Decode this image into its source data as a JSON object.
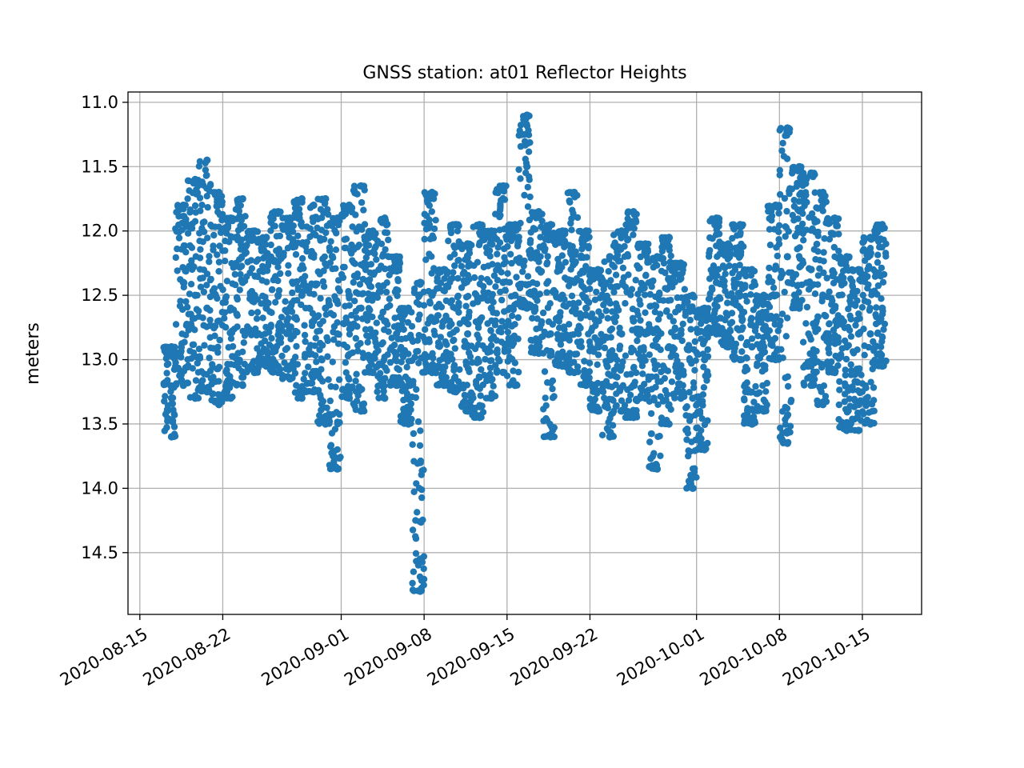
{
  "chart_data": {
    "type": "scatter",
    "title": "GNSS station: at01 Reflector Heights",
    "xlabel": "",
    "ylabel": "meters",
    "x_type": "date",
    "xlim": [
      "2020-08-14",
      "2020-10-20"
    ],
    "ylim": [
      14.98,
      10.92
    ],
    "y_inverted": true,
    "grid": true,
    "marker": "filled-circle",
    "color": "#1f77b4",
    "x_ticks": [
      "2020-08-15",
      "2020-08-22",
      "2020-09-01",
      "2020-09-08",
      "2020-09-15",
      "2020-09-22",
      "2020-10-01",
      "2020-10-08",
      "2020-10-15"
    ],
    "y_ticks": [
      11.0,
      11.5,
      12.0,
      12.5,
      13.0,
      13.5,
      14.0,
      14.5
    ],
    "series": [
      {
        "points": [
          [
            "2020-08-17",
            13.3
          ],
          [
            "2020-08-17",
            13.6
          ],
          [
            "2020-08-17",
            12.9
          ],
          [
            "2020-08-18",
            11.8
          ],
          [
            "2020-08-18",
            13.2
          ],
          [
            "2020-08-18",
            12.4
          ],
          [
            "2020-08-19",
            11.6
          ],
          [
            "2020-08-19",
            13.3
          ],
          [
            "2020-08-19",
            12.5
          ],
          [
            "2020-08-20",
            11.45
          ],
          [
            "2020-08-20",
            13.25
          ],
          [
            "2020-08-20",
            12.6
          ],
          [
            "2020-08-21",
            11.7
          ],
          [
            "2020-08-21",
            13.35
          ],
          [
            "2020-08-21",
            12.7
          ],
          [
            "2020-08-22",
            11.9
          ],
          [
            "2020-08-22",
            13.3
          ],
          [
            "2020-08-22",
            12.6
          ],
          [
            "2020-08-23",
            11.75
          ],
          [
            "2020-08-23",
            13.2
          ],
          [
            "2020-08-23",
            12.4
          ],
          [
            "2020-08-24",
            12.0
          ],
          [
            "2020-08-24",
            13.1
          ],
          [
            "2020-08-24",
            12.5
          ],
          [
            "2020-08-25",
            12.05
          ],
          [
            "2020-08-25",
            13.05
          ],
          [
            "2020-08-25",
            12.6
          ],
          [
            "2020-08-26",
            11.85
          ],
          [
            "2020-08-26",
            13.1
          ],
          [
            "2020-08-26",
            12.5
          ],
          [
            "2020-08-27",
            11.9
          ],
          [
            "2020-08-27",
            13.15
          ],
          [
            "2020-08-27",
            12.6
          ],
          [
            "2020-08-28",
            11.75
          ],
          [
            "2020-08-28",
            13.3
          ],
          [
            "2020-08-28",
            12.5
          ],
          [
            "2020-08-29",
            11.8
          ],
          [
            "2020-08-29",
            13.25
          ],
          [
            "2020-08-29",
            12.7
          ],
          [
            "2020-08-30",
            11.75
          ],
          [
            "2020-08-30",
            13.5
          ],
          [
            "2020-08-30",
            12.6
          ],
          [
            "2020-08-31",
            13.85
          ],
          [
            "2020-08-31",
            11.9
          ],
          [
            "2020-08-31",
            12.8
          ],
          [
            "2020-09-01",
            11.8
          ],
          [
            "2020-09-01",
            13.3
          ],
          [
            "2020-09-01",
            12.5
          ],
          [
            "2020-09-02",
            11.65
          ],
          [
            "2020-09-02",
            13.4
          ],
          [
            "2020-09-02",
            12.6
          ],
          [
            "2020-09-03",
            12.0
          ],
          [
            "2020-09-03",
            13.1
          ],
          [
            "2020-09-03",
            12.5
          ],
          [
            "2020-09-04",
            11.9
          ],
          [
            "2020-09-04",
            13.3
          ],
          [
            "2020-09-04",
            12.7
          ],
          [
            "2020-09-05",
            12.2
          ],
          [
            "2020-09-05",
            13.2
          ],
          [
            "2020-09-05",
            12.8
          ],
          [
            "2020-09-06",
            12.6
          ],
          [
            "2020-09-06",
            13.5
          ],
          [
            "2020-09-06",
            13.2
          ],
          [
            "2020-09-07",
            13.8
          ],
          [
            "2020-09-07",
            14.55
          ],
          [
            "2020-09-07",
            14.8
          ],
          [
            "2020-09-07",
            12.4
          ],
          [
            "2020-09-08",
            11.7
          ],
          [
            "2020-09-08",
            13.1
          ],
          [
            "2020-09-08",
            12.5
          ],
          [
            "2020-09-09",
            12.3
          ],
          [
            "2020-09-09",
            13.2
          ],
          [
            "2020-09-09",
            12.7
          ],
          [
            "2020-09-10",
            11.95
          ],
          [
            "2020-09-10",
            13.25
          ],
          [
            "2020-09-10",
            12.6
          ],
          [
            "2020-09-11",
            12.1
          ],
          [
            "2020-09-11",
            13.4
          ],
          [
            "2020-09-11",
            12.8
          ],
          [
            "2020-09-12",
            11.95
          ],
          [
            "2020-09-12",
            13.45
          ],
          [
            "2020-09-12",
            12.7
          ],
          [
            "2020-09-13",
            12.0
          ],
          [
            "2020-09-13",
            13.3
          ],
          [
            "2020-09-13",
            12.6
          ],
          [
            "2020-09-14",
            11.65
          ],
          [
            "2020-09-14",
            13.1
          ],
          [
            "2020-09-14",
            12.4
          ],
          [
            "2020-09-15",
            11.95
          ],
          [
            "2020-09-15",
            13.2
          ],
          [
            "2020-09-15",
            12.5
          ],
          [
            "2020-09-16",
            11.1
          ],
          [
            "2020-09-16",
            12.6
          ],
          [
            "2020-09-16",
            11.5
          ],
          [
            "2020-09-17",
            11.85
          ],
          [
            "2020-09-17",
            12.95
          ],
          [
            "2020-09-17",
            12.3
          ],
          [
            "2020-09-18",
            11.95
          ],
          [
            "2020-09-18",
            13.6
          ],
          [
            "2020-09-18",
            12.8
          ],
          [
            "2020-09-19",
            12.0
          ],
          [
            "2020-09-19",
            13.05
          ],
          [
            "2020-09-19",
            12.5
          ],
          [
            "2020-09-20",
            11.7
          ],
          [
            "2020-09-20",
            13.1
          ],
          [
            "2020-09-20",
            12.4
          ],
          [
            "2020-09-21",
            12.0
          ],
          [
            "2020-09-21",
            13.2
          ],
          [
            "2020-09-21",
            12.6
          ],
          [
            "2020-09-22",
            12.3
          ],
          [
            "2020-09-22",
            13.4
          ],
          [
            "2020-09-22",
            12.9
          ],
          [
            "2020-09-23",
            12.2
          ],
          [
            "2020-09-23",
            13.6
          ],
          [
            "2020-09-23",
            13.0
          ],
          [
            "2020-09-24",
            12.0
          ],
          [
            "2020-09-24",
            13.4
          ],
          [
            "2020-09-24",
            12.8
          ],
          [
            "2020-09-25",
            11.85
          ],
          [
            "2020-09-25",
            13.45
          ],
          [
            "2020-09-25",
            12.7
          ],
          [
            "2020-09-26",
            12.1
          ],
          [
            "2020-09-26",
            13.3
          ],
          [
            "2020-09-26",
            12.8
          ],
          [
            "2020-09-27",
            12.2
          ],
          [
            "2020-09-27",
            13.85
          ],
          [
            "2020-09-27",
            12.9
          ],
          [
            "2020-09-28",
            12.05
          ],
          [
            "2020-09-28",
            13.5
          ],
          [
            "2020-09-28",
            12.9
          ],
          [
            "2020-09-29",
            12.25
          ],
          [
            "2020-09-29",
            13.3
          ],
          [
            "2020-09-29",
            12.8
          ],
          [
            "2020-09-30",
            12.5
          ],
          [
            "2020-09-30",
            14.0
          ],
          [
            "2020-09-30",
            13.3
          ],
          [
            "2020-10-01",
            12.6
          ],
          [
            "2020-10-01",
            13.7
          ],
          [
            "2020-10-01",
            13.0
          ],
          [
            "2020-10-02",
            11.9
          ],
          [
            "2020-10-02",
            12.8
          ],
          [
            "2020-10-02",
            12.4
          ],
          [
            "2020-10-03",
            12.1
          ],
          [
            "2020-10-03",
            12.9
          ],
          [
            "2020-10-03",
            12.5
          ],
          [
            "2020-10-04",
            11.95
          ],
          [
            "2020-10-04",
            13.0
          ],
          [
            "2020-10-04",
            12.5
          ],
          [
            "2020-10-05",
            12.3
          ],
          [
            "2020-10-05",
            13.5
          ],
          [
            "2020-10-05",
            12.9
          ],
          [
            "2020-10-06",
            12.5
          ],
          [
            "2020-10-06",
            13.4
          ],
          [
            "2020-10-06",
            12.9
          ],
          [
            "2020-10-07",
            11.8
          ],
          [
            "2020-10-07",
            12.5
          ],
          [
            "2020-10-07",
            13.0
          ],
          [
            "2020-10-08",
            11.2
          ],
          [
            "2020-10-08",
            13.65
          ],
          [
            "2020-10-08",
            12.2
          ],
          [
            "2020-10-09",
            11.5
          ],
          [
            "2020-10-09",
            12.6
          ],
          [
            "2020-10-09",
            12.0
          ],
          [
            "2020-10-10",
            11.55
          ],
          [
            "2020-10-10",
            13.2
          ],
          [
            "2020-10-10",
            12.3
          ],
          [
            "2020-10-11",
            11.7
          ],
          [
            "2020-10-11",
            13.35
          ],
          [
            "2020-10-11",
            12.5
          ],
          [
            "2020-10-12",
            11.9
          ],
          [
            "2020-10-12",
            13.1
          ],
          [
            "2020-10-12",
            12.6
          ],
          [
            "2020-10-13",
            12.2
          ],
          [
            "2020-10-13",
            13.55
          ],
          [
            "2020-10-13",
            12.9
          ],
          [
            "2020-10-14",
            12.3
          ],
          [
            "2020-10-14",
            13.55
          ],
          [
            "2020-10-14",
            12.8
          ],
          [
            "2020-10-15",
            12.05
          ],
          [
            "2020-10-15",
            13.5
          ],
          [
            "2020-10-15",
            12.8
          ],
          [
            "2020-10-16",
            11.95
          ],
          [
            "2020-10-16",
            13.05
          ],
          [
            "2020-10-16",
            12.6
          ]
        ]
      }
    ]
  }
}
